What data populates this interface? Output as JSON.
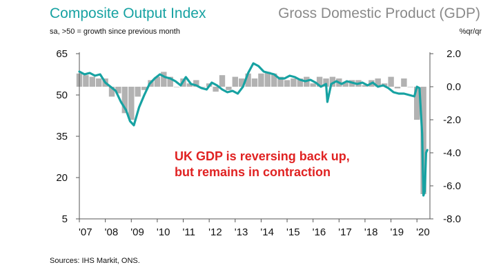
{
  "header": {
    "left_title": "Composite Output Index",
    "right_title": "Gross Domestic Product (GDP)",
    "left_subtitle": "sa, >50 = growth since previous month",
    "right_subtitle": "%qr/qr"
  },
  "source": "Sources: IHS Markit, ONS.",
  "colors": {
    "pmi_line": "#17a2a2",
    "gdp_bars": "#b2b2b2",
    "annotation": "#e02222",
    "axis": "#555555"
  },
  "chart_data": {
    "type": "line",
    "title": "Composite Output Index",
    "secondary_title": "Gross Domestic Product (GDP)",
    "xlabel": "",
    "ylabel": "sa, >50 = growth since previous month",
    "y2label": "%qr/qr",
    "x_range": [
      2007.0,
      2020.5
    ],
    "ylim": [
      5,
      65
    ],
    "y2lim": [
      -8.0,
      2.0
    ],
    "left_ticks": [
      65,
      50,
      35,
      20,
      5
    ],
    "right_ticks": [
      "2.0",
      "0.0",
      "-2.0",
      "-4.0",
      "-6.0",
      "-8.0"
    ],
    "right_tick_values": [
      2.0,
      0.0,
      -2.0,
      -4.0,
      -6.0,
      -8.0
    ],
    "x_tick_labels": [
      "'07",
      "'08",
      "'09",
      "'10",
      "'11",
      "'12",
      "'13",
      "'14",
      "'15",
      "'16",
      "'17",
      "'18",
      "'19",
      "'20"
    ],
    "x_tick_values": [
      2007,
      2008,
      2009,
      2010,
      2011,
      2012,
      2013,
      2014,
      2015,
      2016,
      2017,
      2018,
      2019,
      2020
    ],
    "annotation_lines": [
      "UK GDP is reversing back up,",
      "but remains in contraction"
    ],
    "series": [
      {
        "name": "Composite Output Index",
        "axis": "left",
        "x": [
          2007.0,
          2007.2,
          2007.4,
          2007.6,
          2007.8,
          2008.0,
          2008.2,
          2008.4,
          2008.6,
          2008.8,
          2008.95,
          2009.1,
          2009.3,
          2009.5,
          2009.7,
          2009.9,
          2010.1,
          2010.3,
          2010.5,
          2010.7,
          2010.9,
          2011.1,
          2011.3,
          2011.5,
          2011.7,
          2011.9,
          2012.1,
          2012.3,
          2012.5,
          2012.7,
          2012.9,
          2013.1,
          2013.3,
          2013.5,
          2013.7,
          2013.9,
          2014.1,
          2014.3,
          2014.5,
          2014.7,
          2014.9,
          2015.1,
          2015.3,
          2015.5,
          2015.7,
          2015.9,
          2016.1,
          2016.3,
          2016.5,
          2016.55,
          2016.7,
          2016.9,
          2017.1,
          2017.3,
          2017.5,
          2017.7,
          2017.9,
          2018.1,
          2018.3,
          2018.5,
          2018.7,
          2018.9,
          2019.1,
          2019.3,
          2019.5,
          2019.7,
          2019.9,
          2020.0,
          2020.1,
          2020.2,
          2020.25,
          2020.3,
          2020.35,
          2020.4
        ],
        "values": [
          58.5,
          57.5,
          58.0,
          57.0,
          57.5,
          54.5,
          53.0,
          51.5,
          47.5,
          44.5,
          40.5,
          39.0,
          45.5,
          50.0,
          54.0,
          56.0,
          57.5,
          56.5,
          56.0,
          55.0,
          53.5,
          56.5,
          54.0,
          53.5,
          52.5,
          52.0,
          54.5,
          53.5,
          52.0,
          51.0,
          51.5,
          50.5,
          53.0,
          58.0,
          61.5,
          60.5,
          58.5,
          58.0,
          57.5,
          56.0,
          56.0,
          57.0,
          56.5,
          55.5,
          55.0,
          55.5,
          54.5,
          53.0,
          54.0,
          47.5,
          54.0,
          55.0,
          54.0,
          55.0,
          54.5,
          54.0,
          54.5,
          53.5,
          54.5,
          53.0,
          53.5,
          52.5,
          51.0,
          50.5,
          50.5,
          50.0,
          49.5,
          53.0,
          52.5,
          36.0,
          13.5,
          15.0,
          29.0,
          30.0
        ]
      },
      {
        "name": "Gross Domestic Product (GDP)",
        "axis": "right",
        "type": "bar",
        "x": [
          2007.0,
          2007.25,
          2007.5,
          2007.75,
          2008.0,
          2008.25,
          2008.5,
          2008.75,
          2009.0,
          2009.25,
          2009.5,
          2009.75,
          2010.0,
          2010.25,
          2010.5,
          2010.75,
          2011.0,
          2011.25,
          2011.5,
          2011.75,
          2012.0,
          2012.25,
          2012.5,
          2012.75,
          2013.0,
          2013.25,
          2013.5,
          2013.75,
          2014.0,
          2014.25,
          2014.5,
          2014.75,
          2015.0,
          2015.25,
          2015.5,
          2015.75,
          2016.0,
          2016.25,
          2016.5,
          2016.75,
          2017.0,
          2017.25,
          2017.5,
          2017.75,
          2018.0,
          2018.25,
          2018.5,
          2018.75,
          2019.0,
          2019.25,
          2019.5,
          2019.75,
          2020.0,
          2020.25
        ],
        "values": [
          0.8,
          0.7,
          0.6,
          0.5,
          0.5,
          -0.6,
          -0.4,
          -1.6,
          -2.0,
          -0.6,
          -0.2,
          0.4,
          0.6,
          0.9,
          0.6,
          0.0,
          0.5,
          0.2,
          0.4,
          0.0,
          0.2,
          -0.3,
          0.7,
          -0.2,
          0.6,
          0.5,
          0.8,
          0.5,
          0.8,
          0.9,
          0.8,
          0.6,
          0.4,
          0.5,
          0.5,
          0.6,
          0.2,
          0.6,
          0.5,
          0.6,
          0.5,
          0.3,
          0.4,
          0.4,
          0.1,
          0.4,
          0.5,
          0.2,
          0.6,
          -0.1,
          0.5,
          0.0,
          -2.0,
          -6.5
        ]
      }
    ]
  }
}
